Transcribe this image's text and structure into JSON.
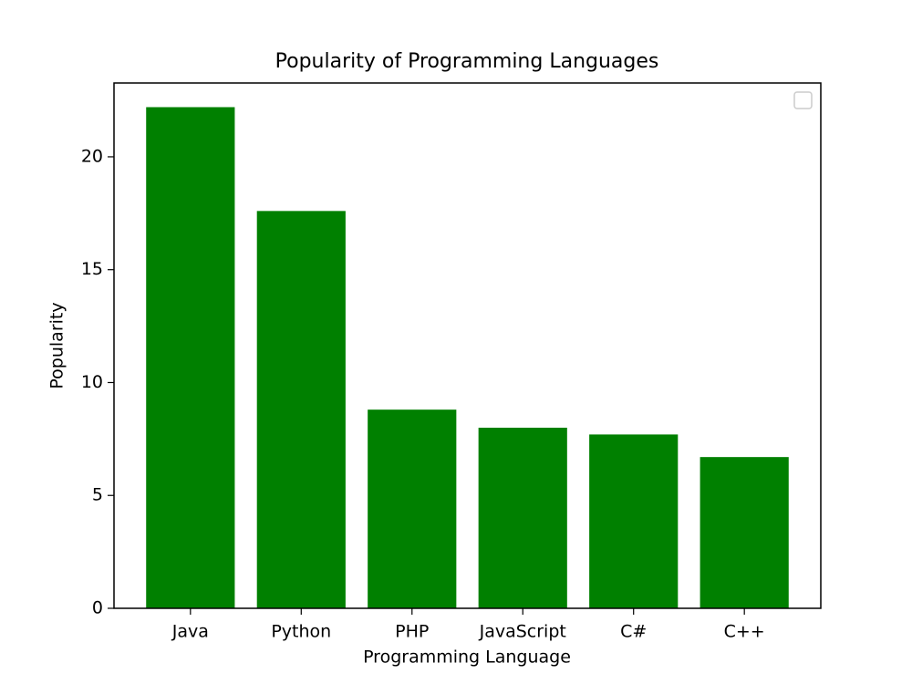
{
  "chart_data": {
    "type": "bar",
    "title": "Popularity of Programming Languages",
    "x_label": "Programming Language",
    "y_label": "Popularity",
    "categories": [
      "Java",
      "Python",
      "PHP",
      "JavaScript",
      "C#",
      "C++"
    ],
    "values": [
      22.2,
      17.6,
      8.8,
      8.0,
      7.7,
      6.7
    ],
    "color": "#008000",
    "ylim": [
      0,
      23.27
    ],
    "yticks": [
      0,
      5,
      10,
      15,
      20
    ],
    "grid": false
  }
}
